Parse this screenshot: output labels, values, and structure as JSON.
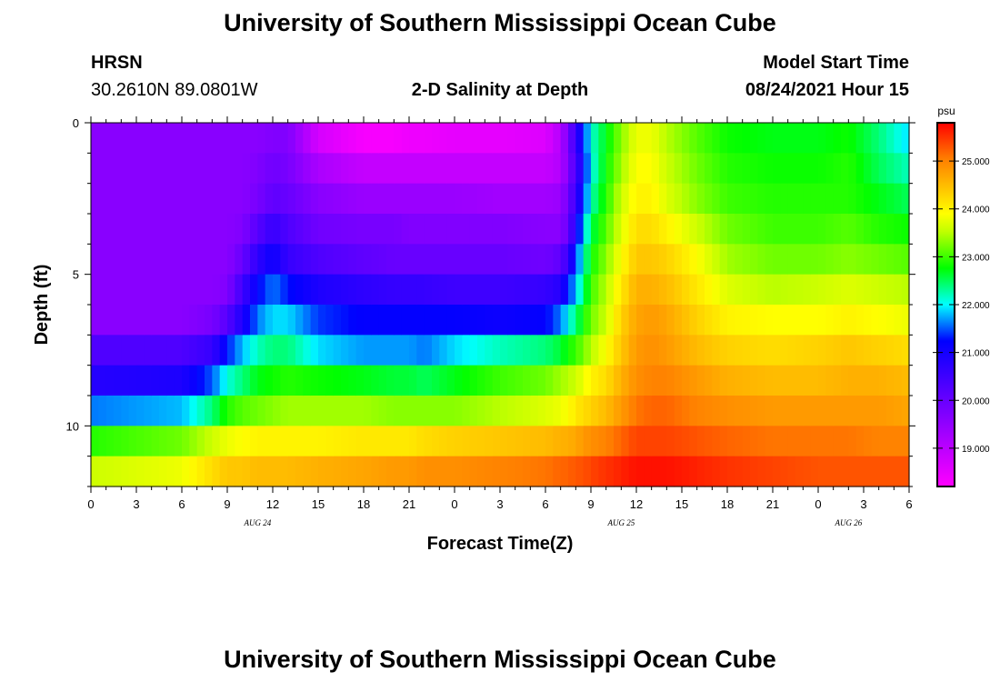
{
  "header": {
    "title": "University of Southern Mississippi Ocean Cube",
    "station": "HRSN",
    "coords": "30.2610N  89.0801W",
    "subtitle": "2-D Salinity at Depth",
    "model_label": "Model Start Time",
    "model_time": "08/24/2021 Hour 15"
  },
  "footer": {
    "title": "University of Southern Mississippi Ocean Cube"
  },
  "chart_data": {
    "type": "heatmap",
    "title": "2-D Salinity at Depth",
    "xlabel": "Forecast Time(Z)",
    "ylabel": "Depth (ft)",
    "units": "psu",
    "x_hours": [
      0,
      54
    ],
    "x_tick_labels": [
      "0",
      "3",
      "6",
      "9",
      "12",
      "15",
      "18",
      "21",
      "0",
      "3",
      "6",
      "9",
      "12",
      "15",
      "18",
      "21",
      "0",
      "3",
      "6"
    ],
    "date_labels": [
      {
        "hour": 11,
        "text": "AUG  24"
      },
      {
        "hour": 35,
        "text": "AUG  25"
      },
      {
        "hour": 50,
        "text": "AUG  26"
      }
    ],
    "y_range": [
      0,
      12
    ],
    "y_ticks": [
      0,
      5,
      10
    ],
    "depth_rows": [
      0.5,
      1.5,
      2.5,
      3.5,
      4.5,
      5.5,
      6.5,
      7.5,
      8.5,
      9.5,
      10.5,
      11.5
    ],
    "colorbar": {
      "min": 18.2,
      "max": 25.8,
      "ticks": [
        19.0,
        20.0,
        21.0,
        22.0,
        23.0,
        24.0,
        25.0
      ],
      "tick_labels": [
        "19.000",
        "20.000",
        "21.000",
        "22.000",
        "23.000",
        "24.000",
        "25.000"
      ]
    },
    "profile_hours": [
      0,
      6,
      8,
      9,
      10,
      11,
      12,
      13,
      15,
      18,
      20,
      21,
      22,
      24,
      27,
      30,
      31,
      31.5,
      32,
      32.5,
      33,
      34,
      35,
      36,
      37,
      38,
      40,
      42,
      45,
      48,
      50,
      52,
      54
    ],
    "profiles": [
      [
        19.6,
        19.6,
        19.6,
        19.6,
        19.6,
        19.6,
        19.6,
        20.3,
        20.8,
        21.6,
        22.9,
        23.6
      ],
      [
        19.6,
        19.6,
        19.6,
        19.6,
        19.6,
        19.6,
        19.6,
        20.3,
        20.9,
        21.8,
        23.2,
        23.8
      ],
      [
        19.6,
        19.6,
        19.6,
        19.6,
        19.6,
        19.6,
        19.8,
        20.6,
        21.5,
        22.4,
        23.6,
        24.2
      ],
      [
        19.6,
        19.6,
        19.6,
        19.6,
        19.6,
        19.7,
        20.2,
        21.3,
        22.1,
        22.9,
        23.8,
        24.4
      ],
      [
        19.6,
        19.6,
        19.6,
        19.7,
        20.0,
        20.5,
        20.9,
        21.8,
        22.4,
        23.1,
        23.9,
        24.4
      ],
      [
        19.6,
        19.7,
        19.8,
        20.2,
        20.7,
        21.2,
        21.6,
        22.2,
        22.7,
        23.2,
        24.0,
        24.5
      ],
      [
        19.7,
        19.9,
        20.1,
        20.6,
        21.1,
        21.6,
        21.9,
        22.4,
        22.8,
        23.3,
        24.0,
        24.5
      ],
      [
        19.7,
        19.8,
        20.0,
        20.3,
        20.6,
        21.3,
        21.9,
        22.4,
        22.9,
        23.4,
        24.0,
        24.5
      ],
      [
        18.7,
        19.2,
        19.6,
        19.9,
        20.3,
        20.9,
        21.4,
        21.9,
        22.8,
        23.4,
        24.0,
        24.6
      ],
      [
        18.3,
        18.9,
        19.4,
        19.8,
        20.1,
        20.7,
        21.2,
        21.7,
        22.7,
        23.4,
        24.1,
        24.7
      ],
      [
        18.3,
        18.9,
        19.4,
        19.8,
        20.0,
        20.6,
        21.2,
        21.7,
        22.6,
        23.3,
        24.1,
        24.8
      ],
      [
        18.4,
        18.9,
        19.4,
        19.7,
        20.0,
        20.6,
        21.2,
        21.7,
        22.6,
        23.3,
        24.1,
        24.8
      ],
      [
        18.4,
        18.9,
        19.4,
        19.7,
        20.0,
        20.6,
        21.2,
        21.6,
        22.5,
        23.3,
        24.2,
        24.9
      ],
      [
        18.5,
        18.9,
        19.4,
        19.7,
        20.0,
        20.5,
        21.2,
        21.9,
        22.7,
        23.3,
        24.3,
        24.9
      ],
      [
        18.5,
        18.9,
        19.3,
        19.7,
        20.0,
        20.5,
        21.1,
        22.2,
        23.0,
        23.5,
        24.4,
        25.0
      ],
      [
        18.6,
        18.9,
        19.3,
        19.6,
        19.9,
        20.6,
        21.2,
        22.4,
        23.2,
        23.7,
        24.5,
        25.1
      ],
      [
        19.1,
        19.1,
        19.4,
        19.6,
        20.1,
        20.8,
        21.6,
        22.6,
        23.4,
        23.8,
        24.6,
        25.2
      ],
      [
        19.8,
        19.7,
        19.9,
        20.0,
        20.6,
        21.3,
        22.0,
        22.8,
        23.5,
        23.9,
        24.6,
        25.2
      ],
      [
        20.6,
        20.4,
        20.6,
        20.9,
        21.4,
        21.8,
        22.4,
        23.0,
        23.6,
        24.1,
        24.7,
        25.3
      ],
      [
        21.3,
        21.1,
        21.3,
        21.8,
        22.1,
        22.4,
        22.8,
        23.2,
        23.8,
        24.2,
        24.8,
        25.3
      ],
      [
        22.1,
        22.0,
        22.2,
        22.5,
        22.8,
        23.0,
        23.2,
        23.5,
        24.0,
        24.3,
        24.9,
        25.4
      ],
      [
        22.7,
        22.8,
        22.9,
        23.1,
        23.3,
        23.5,
        23.6,
        23.9,
        24.2,
        24.5,
        25.0,
        25.5
      ],
      [
        23.3,
        23.4,
        23.6,
        23.7,
        23.9,
        24.1,
        24.3,
        24.4,
        24.6,
        24.8,
        25.2,
        25.6
      ],
      [
        23.8,
        23.9,
        24.0,
        24.2,
        24.4,
        24.6,
        24.7,
        24.8,
        24.9,
        25.1,
        25.4,
        25.7
      ],
      [
        23.8,
        23.9,
        24.0,
        24.2,
        24.4,
        24.6,
        24.8,
        24.9,
        25.0,
        25.2,
        25.4,
        25.7
      ],
      [
        23.5,
        23.6,
        23.7,
        24.0,
        24.3,
        24.5,
        24.7,
        24.8,
        25.0,
        25.2,
        25.4,
        25.7
      ],
      [
        23.1,
        23.2,
        23.3,
        23.6,
        23.9,
        24.1,
        24.3,
        24.5,
        24.8,
        25.0,
        25.3,
        25.6
      ],
      [
        22.8,
        22.9,
        23.0,
        23.2,
        23.4,
        23.7,
        24.0,
        24.3,
        24.6,
        24.9,
        25.2,
        25.5
      ],
      [
        22.7,
        22.8,
        22.9,
        23.0,
        23.2,
        23.5,
        23.9,
        24.2,
        24.5,
        24.8,
        25.1,
        25.4
      ],
      [
        22.7,
        22.8,
        22.9,
        23.0,
        23.2,
        23.6,
        23.9,
        24.3,
        24.5,
        24.8,
        25.1,
        25.3
      ],
      [
        22.8,
        22.9,
        22.9,
        23.1,
        23.3,
        23.7,
        24.0,
        24.4,
        24.6,
        24.8,
        25.1,
        25.3
      ],
      [
        22.4,
        22.5,
        22.7,
        22.9,
        23.2,
        23.6,
        23.9,
        24.3,
        24.6,
        24.8,
        25.0,
        25.3
      ],
      [
        21.9,
        22.2,
        22.5,
        22.8,
        23.1,
        23.5,
        23.8,
        24.2,
        24.5,
        24.7,
        25.0,
        25.3
      ]
    ]
  }
}
